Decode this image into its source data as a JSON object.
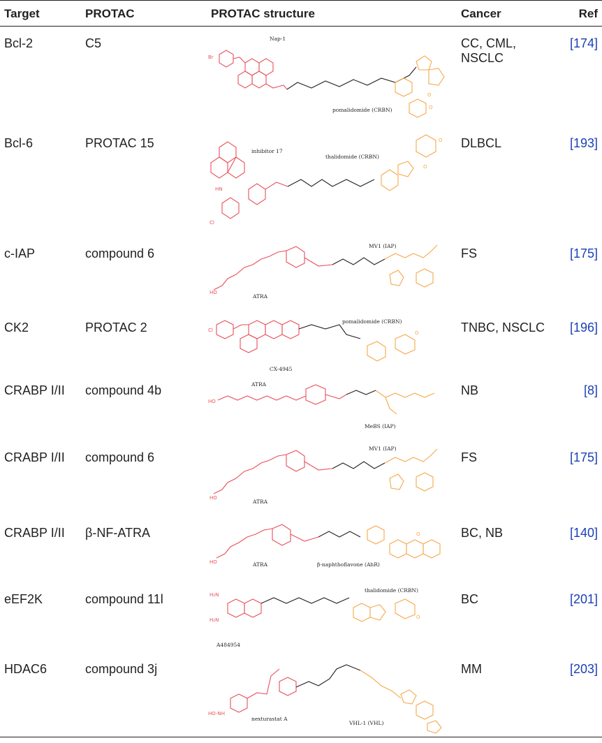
{
  "headers": {
    "target": "Target",
    "protac": "PROTAC",
    "structure": "PROTAC structure",
    "cancer": "Cancer",
    "ref": "Ref"
  },
  "rows": [
    {
      "target": "Bcl-2",
      "protac": "C5",
      "cancer": "CC, CML, NSCLC",
      "ref": "[174]",
      "labels": [
        "Nap-1",
        "pomalidomide (CRBN)"
      ]
    },
    {
      "target": "Bcl-6",
      "protac": "PROTAC 15",
      "cancer": "DLBCL",
      "ref": "[193]",
      "labels": [
        "inhibitor 17",
        "thalidomide (CRBN)"
      ]
    },
    {
      "target": "c-IAP",
      "protac": "compound 6",
      "cancer": "FS",
      "ref": "[175]",
      "labels": [
        "MV1 (IAP)",
        "ATRA"
      ]
    },
    {
      "target": "CK2",
      "protac": "PROTAC 2",
      "cancer": "TNBC, NSCLC",
      "ref": "[196]",
      "labels": [
        "pomalidomide (CRBN)",
        "CX-4945"
      ]
    },
    {
      "target": "CRABP I/II",
      "protac": "compound 4b",
      "cancer": "NB",
      "ref": "[8]",
      "labels": [
        "ATRA",
        "MeBS (IAP)"
      ]
    },
    {
      "target": "CRABP I/II",
      "protac": "compound 6",
      "cancer": "FS",
      "ref": "[175]",
      "labels": [
        "MV1 (IAP)",
        "ATRA"
      ]
    },
    {
      "target": "CRABP I/II",
      "protac": "β-NF-ATRA",
      "cancer": "BC, NB",
      "ref": "[140]",
      "labels": [
        "ATRA",
        "β-naphthoflavone (AhR)"
      ]
    },
    {
      "target": "eEF2K",
      "protac": "compound 11l",
      "cancer": "BC",
      "ref": "[201]",
      "labels": [
        "thalidomide (CRBN)",
        "A484954"
      ]
    },
    {
      "target": "HDAC6",
      "protac": "compound 3j",
      "cancer": "MM",
      "ref": "[203]",
      "labels": [
        "nexturastat A",
        "VHL-1 (VHL)"
      ]
    }
  ]
}
